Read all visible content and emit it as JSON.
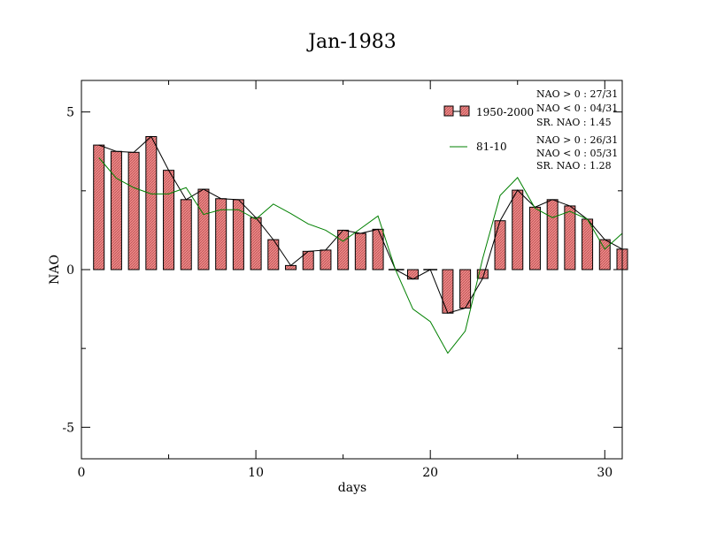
{
  "chart_data": {
    "type": "bar",
    "title": "Jan-1983",
    "xlabel": "days",
    "ylabel": "NAO",
    "xlim": [
      0,
      31
    ],
    "ylim": [
      -6,
      6
    ],
    "x_ticks": [
      0,
      10,
      20,
      30
    ],
    "y_ticks": [
      -5,
      0,
      5
    ],
    "x_tick_labels": [
      "0",
      "10",
      "20",
      "30"
    ],
    "y_tick_labels": [
      "-5",
      "0",
      "5"
    ],
    "legend_position": "top-right",
    "colors": {
      "bar_fill": "#e87a7a",
      "bar_stroke": "#000000",
      "bar_line": "#000000",
      "series_81_10": "#008000"
    },
    "days": [
      1,
      2,
      3,
      4,
      5,
      6,
      7,
      8,
      9,
      10,
      11,
      12,
      13,
      14,
      15,
      16,
      17,
      18,
      19,
      20,
      21,
      22,
      23,
      24,
      25,
      26,
      27,
      28,
      29,
      30,
      31
    ],
    "series": [
      {
        "name": "1950-2000",
        "style": "bars",
        "values": [
          3.95,
          3.75,
          3.72,
          4.22,
          3.15,
          2.22,
          2.55,
          2.25,
          2.22,
          1.65,
          0.95,
          0.13,
          0.58,
          0.62,
          1.25,
          1.15,
          1.28,
          0.0,
          -0.3,
          0.0,
          -1.38,
          -1.22,
          -0.28,
          1.55,
          2.52,
          1.98,
          2.22,
          2.02,
          1.6,
          0.95,
          0.65
        ]
      },
      {
        "name": "81-10",
        "style": "line",
        "values": [
          3.55,
          2.9,
          2.6,
          2.4,
          2.4,
          2.6,
          1.75,
          1.9,
          1.9,
          1.6,
          2.08,
          1.78,
          1.45,
          1.25,
          0.9,
          1.3,
          1.7,
          0.0,
          -1.25,
          -1.65,
          -2.65,
          -1.95,
          0.35,
          2.35,
          2.92,
          1.95,
          1.65,
          1.85,
          1.6,
          0.65,
          1.15
        ]
      }
    ],
    "stats_box_1": [
      "NAO > 0 : 27/31",
      "NAO < 0 : 04/31",
      "SR. NAO :  1.45"
    ],
    "stats_box_2": [
      "NAO > 0 : 26/31",
      "NAO < 0 : 05/31",
      "SR. NAO :  1.28"
    ]
  }
}
